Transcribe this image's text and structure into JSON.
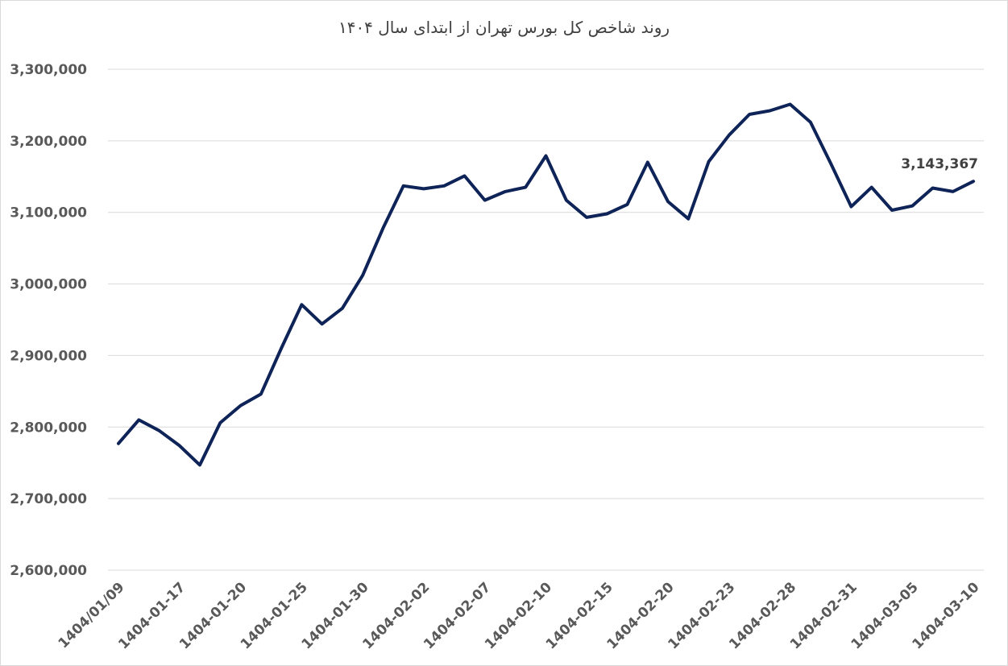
{
  "chart_data": {
    "type": "line",
    "title": "روند شاخص کل بورس تهران از ابتدای سال ۱۴۰۴",
    "xlabel": "",
    "ylabel": "",
    "ylim": [
      2600000,
      3300000
    ],
    "yticks": [
      2600000,
      2700000,
      2800000,
      2900000,
      3000000,
      3100000,
      3200000,
      3300000
    ],
    "ytick_labels": [
      "2,600,000",
      "2,700,000",
      "2,800,000",
      "2,900,000",
      "3,000,000",
      "3,100,000",
      "3,200,000",
      "3,300,000"
    ],
    "grid": true,
    "legend": "none",
    "line_color": "#0e2357",
    "x_tick_labels": [
      "1404/01/09",
      "1404-01-17",
      "1404-01-20",
      "1404-01-25",
      "1404-01-30",
      "1404-02-02",
      "1404-02-07",
      "1404-02-10",
      "1404-02-15",
      "1404-02-20",
      "1404-02-23",
      "1404-02-28",
      "1404-02-31",
      "1404-03-05",
      "1404-03-10"
    ],
    "x_tick_every": 3,
    "series": [
      {
        "values": [
          2777000,
          2810000,
          2795000,
          2774000,
          2747000,
          2806000,
          2830000,
          2846000,
          2910000,
          2971000,
          2944000,
          2966000,
          3012000,
          3078000,
          3137000,
          3133000,
          3137000,
          3151000,
          3117000,
          3129000,
          3135000,
          3179000,
          3117000,
          3093000,
          3098000,
          3111000,
          3170000,
          3115000,
          3091000,
          3171000,
          3208000,
          3237000,
          3242000,
          3251000,
          3226000,
          3168000,
          3108000,
          3135000,
          3103000,
          3109000,
          3134000,
          3129000,
          3143367
        ]
      }
    ],
    "data_labels": [
      {
        "index": 42,
        "text": "3,143,367"
      }
    ]
  }
}
